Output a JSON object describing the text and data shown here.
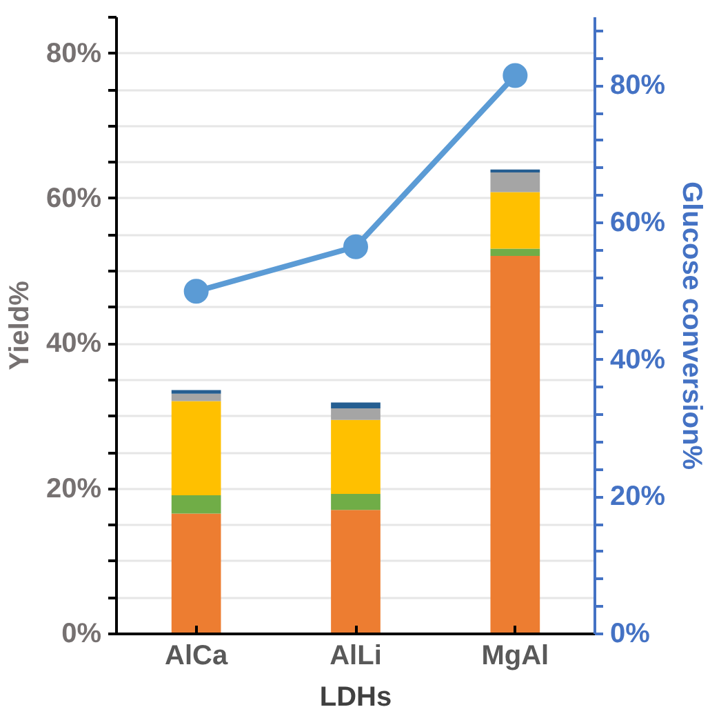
{
  "chart_data": {
    "type": "bar",
    "stacked": true,
    "categories": [
      "AlCa",
      "AlLi",
      "MgAl"
    ],
    "xlabel": "LDHs",
    "ylabel": "Yield%",
    "y2label": "Glucose conversion%",
    "series": [
      {
        "color": "#ed7d31",
        "values": [
          16.6,
          17.1,
          52.1
        ]
      },
      {
        "color": "#70ad47",
        "values": [
          2.5,
          2.2,
          1.0
        ]
      },
      {
        "color": "#ffc000",
        "values": [
          13.0,
          10.2,
          7.8
        ]
      },
      {
        "color": "#a5a5a5",
        "values": [
          1.0,
          1.6,
          2.7
        ]
      },
      {
        "color": "#255e91",
        "values": [
          0.5,
          0.8,
          0.4
        ]
      },
      {
        "type": "line",
        "axis": "y2",
        "color": "#5b9bd5",
        "marker": "circle",
        "values": [
          50,
          56.5,
          81.5
        ]
      }
    ],
    "ylim": [
      0,
      85
    ],
    "yticks": [
      {
        "value": 0,
        "label": "0%"
      },
      {
        "value": 5,
        "label": null
      },
      {
        "value": 10,
        "label": null
      },
      {
        "value": 15,
        "label": null
      },
      {
        "value": 20,
        "label": "20%"
      },
      {
        "value": 25,
        "label": null
      },
      {
        "value": 30,
        "label": null
      },
      {
        "value": 35,
        "label": null
      },
      {
        "value": 40,
        "label": "40%"
      },
      {
        "value": 45,
        "label": null
      },
      {
        "value": 50,
        "label": null
      },
      {
        "value": 55,
        "label": null
      },
      {
        "value": 60,
        "label": "60%"
      },
      {
        "value": 65,
        "label": null
      },
      {
        "value": 70,
        "label": null
      },
      {
        "value": 75,
        "label": null
      },
      {
        "value": 80,
        "label": "80%"
      },
      {
        "value": 85,
        "label": null
      }
    ],
    "y2lim": [
      0,
      90
    ],
    "y2ticks": [
      {
        "value": 0,
        "label": "0%"
      },
      {
        "value": 4,
        "label": null
      },
      {
        "value": 8,
        "label": null
      },
      {
        "value": 12,
        "label": null
      },
      {
        "value": 16,
        "label": null
      },
      {
        "value": 20,
        "label": "20%"
      },
      {
        "value": 24,
        "label": null
      },
      {
        "value": 28,
        "label": null
      },
      {
        "value": 32,
        "label": null
      },
      {
        "value": 36,
        "label": null
      },
      {
        "value": 40,
        "label": "40%"
      },
      {
        "value": 44,
        "label": null
      },
      {
        "value": 48,
        "label": null
      },
      {
        "value": 52,
        "label": null
      },
      {
        "value": 56,
        "label": null
      },
      {
        "value": 60,
        "label": "60%"
      },
      {
        "value": 64,
        "label": null
      },
      {
        "value": 68,
        "label": null
      },
      {
        "value": 72,
        "label": null
      },
      {
        "value": 76,
        "label": null
      },
      {
        "value": 80,
        "label": "80%"
      },
      {
        "value": 84,
        "label": null
      },
      {
        "value": 88,
        "label": null
      }
    ],
    "grid": "y"
  }
}
